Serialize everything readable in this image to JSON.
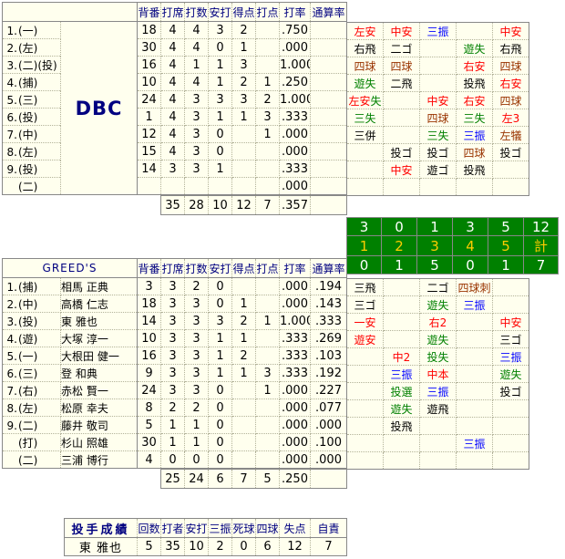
{
  "colors": {
    "hit_red": "#ff0000",
    "strikeout_blue": "#0000ff",
    "error_green": "#008000",
    "walk_brown": "#993300",
    "out_black": "#000000",
    "header_navy": "#000080",
    "cell_background": "#ffffee",
    "grid_border": "#888888",
    "scoreboard_green": "#008000",
    "scoreboard_number_white": "#ffffff",
    "scoreboard_inning_yellow": "#ffcc00"
  },
  "stat_headers": [
    "背番",
    "打席",
    "打数",
    "安打",
    "得点",
    "打点",
    "打率",
    "通算率"
  ],
  "teams": [
    {
      "id": "dbc",
      "name": "DBC",
      "name_in_header": false,
      "rows": [
        {
          "no": "1.",
          "pos": "(一)",
          "name": "",
          "stats": [
            "18",
            "4",
            "4",
            "3",
            "2",
            "",
            ".750",
            ""
          ]
        },
        {
          "no": "2.",
          "pos": "(左)",
          "name": "",
          "stats": [
            "30",
            "4",
            "4",
            "0",
            "1",
            "",
            ".000",
            ""
          ]
        },
        {
          "no": "3.",
          "pos": "(二)(投)",
          "name": "",
          "stats": [
            "16",
            "4",
            "1",
            "1",
            "3",
            "",
            "1.000",
            ""
          ]
        },
        {
          "no": "4.",
          "pos": "(捕)",
          "name": "",
          "stats": [
            "10",
            "4",
            "4",
            "1",
            "2",
            "1",
            ".250",
            ""
          ]
        },
        {
          "no": "5.",
          "pos": "(三)",
          "name": "",
          "stats": [
            "24",
            "4",
            "3",
            "3",
            "3",
            "2",
            "1.000",
            ""
          ]
        },
        {
          "no": "6.",
          "pos": "(投)",
          "name": "",
          "stats": [
            "1",
            "4",
            "3",
            "1",
            "1",
            "3",
            ".333",
            ""
          ]
        },
        {
          "no": "7.",
          "pos": "(中)",
          "name": "",
          "stats": [
            "12",
            "4",
            "3",
            "0",
            "",
            "1",
            ".000",
            ""
          ]
        },
        {
          "no": "8.",
          "pos": "(左)",
          "name": "",
          "stats": [
            "15",
            "4",
            "3",
            "0",
            "",
            "",
            ".000",
            ""
          ]
        },
        {
          "no": "9.",
          "pos": "(投)",
          "name": "",
          "stats": [
            "14",
            "3",
            "3",
            "1",
            "",
            "",
            ".333",
            ""
          ]
        },
        {
          "no": "",
          "pos": "(二)",
          "name": "",
          "stats": [
            "",
            "",
            "",
            "",
            "",
            "",
            ".000",
            ""
          ]
        }
      ],
      "totals": [
        "35",
        "28",
        "10",
        "12",
        "7",
        ".357",
        ""
      ],
      "plays": [
        [
          [
            [
              "左安",
              "hit"
            ]
          ],
          [
            [
              "中安",
              "hit"
            ]
          ],
          [
            [
              "三振",
              "so"
            ]
          ],
          [],
          [
            [
              "中安",
              "hit"
            ]
          ]
        ],
        [
          [
            [
              "右飛",
              "out"
            ]
          ],
          [
            [
              "二ゴ",
              "out"
            ]
          ],
          [],
          [
            [
              "遊失",
              "err"
            ]
          ],
          [
            [
              "右飛",
              "out"
            ]
          ]
        ],
        [
          [
            [
              "四球",
              "walk"
            ]
          ],
          [
            [
              "四球",
              "walk"
            ]
          ],
          [],
          [
            [
              "右安",
              "hit"
            ]
          ],
          [
            [
              "四球",
              "walk"
            ]
          ]
        ],
        [
          [
            [
              "遊失",
              "err"
            ]
          ],
          [
            [
              "二飛",
              "out"
            ]
          ],
          [],
          [
            [
              "投飛",
              "out"
            ]
          ],
          [
            [
              "右安",
              "hit"
            ]
          ]
        ],
        [
          [
            [
              "左安",
              "hit"
            ],
            [
              "失",
              "err"
            ]
          ],
          [],
          [
            [
              "中安",
              "hit"
            ]
          ],
          [
            [
              "右安",
              "hit"
            ]
          ],
          [
            [
              "四球",
              "walk"
            ]
          ]
        ],
        [
          [
            [
              "三失",
              "err"
            ]
          ],
          [],
          [
            [
              "四球",
              "walk"
            ]
          ],
          [
            [
              "三失",
              "err"
            ]
          ],
          [
            [
              "左3",
              "hit"
            ]
          ]
        ],
        [
          [
            [
              "三併",
              "out"
            ]
          ],
          [],
          [
            [
              "三失",
              "err"
            ]
          ],
          [
            [
              "三振",
              "so"
            ]
          ],
          [
            [
              "左犠",
              "walk"
            ]
          ]
        ],
        [
          [],
          [
            [
              "投ゴ",
              "out"
            ]
          ],
          [
            [
              "投ゴ",
              "out"
            ]
          ],
          [
            [
              "四球",
              "walk"
            ]
          ],
          [
            [
              "投ゴ",
              "out"
            ]
          ]
        ],
        [
          [],
          [
            [
              "中安",
              "hit"
            ]
          ],
          [
            [
              "遊ゴ",
              "out"
            ]
          ],
          [
            [
              "投飛",
              "out"
            ]
          ],
          []
        ],
        [
          [],
          [],
          [],
          [],
          []
        ]
      ]
    },
    {
      "id": "greeds",
      "name": "GREED'S",
      "name_in_header": true,
      "rows": [
        {
          "no": "1.",
          "pos": "(捕)",
          "name": "相馬 正典",
          "stats": [
            "3",
            "3",
            "2",
            "0",
            "",
            "",
            ".000",
            ".194"
          ]
        },
        {
          "no": "2.",
          "pos": "(中)",
          "name": "高橋 仁志",
          "stats": [
            "18",
            "3",
            "3",
            "0",
            "1",
            "",
            ".000",
            ".143"
          ]
        },
        {
          "no": "3.",
          "pos": "(投)",
          "name": "東 雅也",
          "stats": [
            "14",
            "3",
            "3",
            "3",
            "2",
            "1",
            "1.000",
            ".333"
          ]
        },
        {
          "no": "4.",
          "pos": "(遊)",
          "name": "大塚 淳一",
          "stats": [
            "10",
            "3",
            "3",
            "1",
            "1",
            "",
            ".333",
            ".269"
          ]
        },
        {
          "no": "5.",
          "pos": "(一)",
          "name": "大根田 健一",
          "stats": [
            "16",
            "3",
            "3",
            "1",
            "2",
            "",
            ".333",
            ".103"
          ]
        },
        {
          "no": "6.",
          "pos": "(三)",
          "name": "登 和典",
          "stats": [
            "9",
            "3",
            "3",
            "1",
            "1",
            "3",
            ".333",
            ".192"
          ]
        },
        {
          "no": "7.",
          "pos": "(右)",
          "name": "赤松 賢一",
          "stats": [
            "24",
            "3",
            "3",
            "0",
            "",
            "1",
            ".000",
            ".227"
          ]
        },
        {
          "no": "8.",
          "pos": "(左)",
          "name": "松原 幸夫",
          "stats": [
            "8",
            "2",
            "2",
            "0",
            "",
            "",
            ".000",
            ".077"
          ]
        },
        {
          "no": "9.",
          "pos": "(二)",
          "name": "藤井 敬司",
          "stats": [
            "5",
            "1",
            "1",
            "0",
            "",
            "",
            ".000",
            ".000"
          ]
        },
        {
          "no": "",
          "pos": "(打)",
          "name": "杉山 照雄",
          "stats": [
            "30",
            "1",
            "1",
            "0",
            "",
            "",
            ".000",
            ".100"
          ]
        },
        {
          "no": "",
          "pos": "(二)",
          "name": "三浦 博行",
          "stats": [
            "4",
            "0",
            "0",
            "0",
            "",
            "",
            ".000",
            ".000"
          ]
        }
      ],
      "totals": [
        "25",
        "24",
        "6",
        "7",
        "5",
        ".250",
        ""
      ],
      "plays": [
        [
          [
            [
              "三飛",
              "out"
            ]
          ],
          [],
          [
            [
              "二ゴ",
              "out"
            ]
          ],
          [
            [
              "四球刺",
              "walk"
            ]
          ],
          []
        ],
        [
          [
            [
              "三ゴ",
              "out"
            ]
          ],
          [],
          [
            [
              "遊失",
              "err"
            ]
          ],
          [
            [
              "三振",
              "so"
            ]
          ],
          []
        ],
        [
          [
            [
              "一安",
              "hit"
            ]
          ],
          [],
          [
            [
              "右2",
              "hit"
            ]
          ],
          [],
          [
            [
              "中安",
              "hit"
            ]
          ]
        ],
        [
          [
            [
              "遊安",
              "hit"
            ]
          ],
          [],
          [
            [
              "遊失",
              "err"
            ]
          ],
          [],
          [
            [
              "三ゴ",
              "out"
            ]
          ]
        ],
        [
          [],
          [
            [
              "中2",
              "hit"
            ]
          ],
          [
            [
              "投失",
              "err"
            ]
          ],
          [],
          [
            [
              "三振",
              "so"
            ]
          ]
        ],
        [
          [],
          [
            [
              "三振",
              "so"
            ]
          ],
          [
            [
              "中本",
              "hit"
            ]
          ],
          [],
          [
            [
              "遊失",
              "err"
            ]
          ]
        ],
        [
          [],
          [
            [
              "投選",
              "err"
            ]
          ],
          [
            [
              "三振",
              "so"
            ]
          ],
          [],
          [
            [
              "投ゴ",
              "out"
            ]
          ]
        ],
        [
          [],
          [
            [
              "遊失",
              "err"
            ]
          ],
          [
            [
              "遊飛",
              "out"
            ]
          ],
          [],
          []
        ],
        [
          [],
          [
            [
              "投飛",
              "out"
            ]
          ],
          [],
          [],
          []
        ],
        [
          [],
          [],
          [],
          [
            [
              "三振",
              "so"
            ]
          ],
          []
        ],
        [
          [],
          [],
          [],
          [],
          []
        ]
      ]
    }
  ],
  "scoreboard": {
    "dbc_runs": [
      "3",
      "0",
      "1",
      "3",
      "5",
      "12"
    ],
    "innings": [
      "1",
      "2",
      "3",
      "4",
      "5",
      "計"
    ],
    "greeds_runs": [
      "0",
      "1",
      "5",
      "0",
      "1",
      "7"
    ]
  },
  "pitching": {
    "title": "投手成績",
    "headers": [
      "回数",
      "打者",
      "安打",
      "三振",
      "死球",
      "四球",
      "失点",
      "自責"
    ],
    "rows": [
      {
        "name": "東 雅也",
        "values": [
          "5",
          "35",
          "10",
          "2",
          "0",
          "6",
          "12",
          "7"
        ]
      }
    ]
  }
}
